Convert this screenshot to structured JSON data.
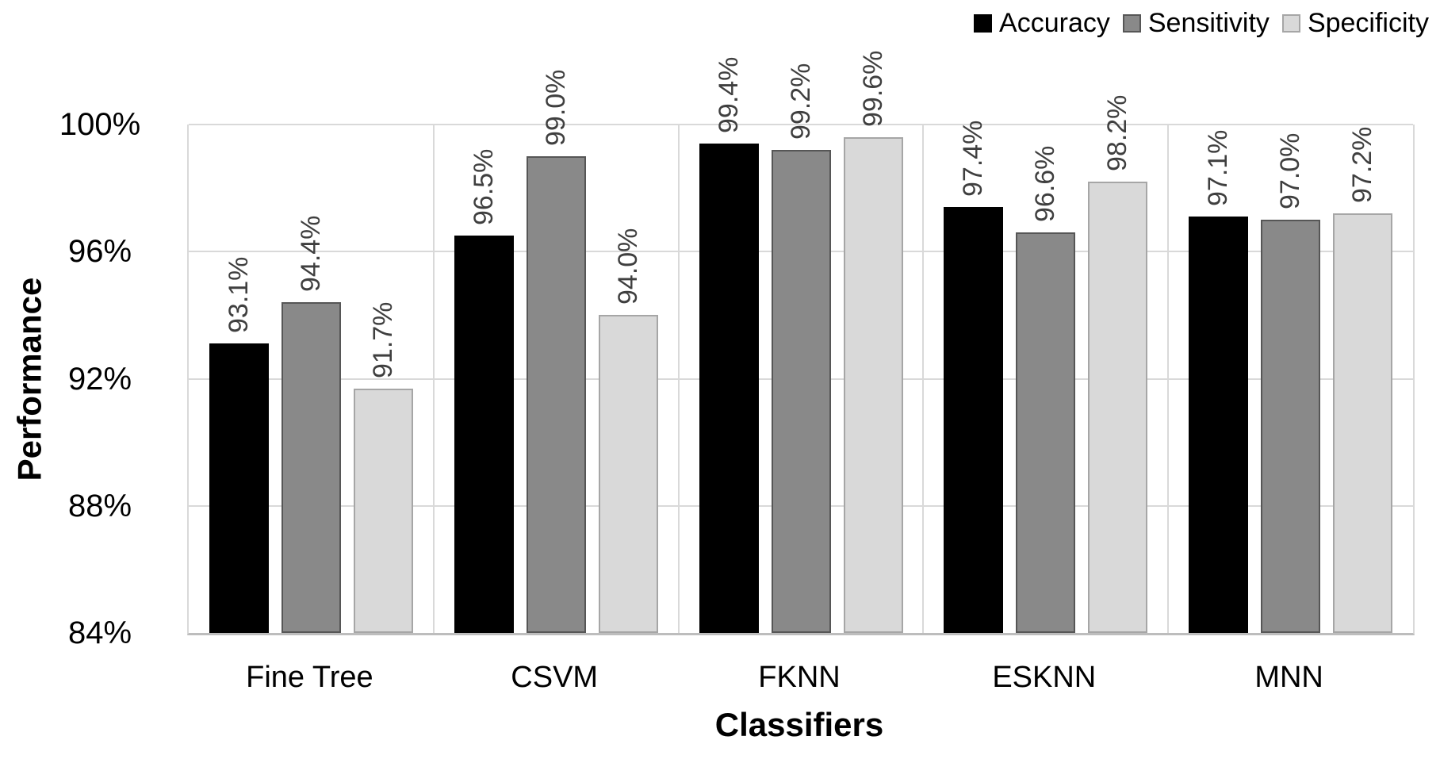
{
  "chart_data": {
    "type": "bar",
    "title": "",
    "xlabel": "Classifiers",
    "ylabel": "Performance",
    "categories": [
      "Fine Tree",
      "CSVM",
      "FKNN",
      "ESKNN",
      "MNN"
    ],
    "series": [
      {
        "name": "Accuracy",
        "color": "#000000",
        "border_color": "#000000",
        "values": [
          93.1,
          96.5,
          99.4,
          97.4,
          97.1
        ],
        "labels": [
          "93.1%",
          "96.5%",
          "99.4%",
          "97.4%",
          "97.1%"
        ]
      },
      {
        "name": "Sensitivity",
        "color": "#898989",
        "border_color": "#565656",
        "values": [
          94.4,
          99.0,
          99.2,
          96.6,
          97.0
        ],
        "labels": [
          "94.4%",
          "99.0%",
          "99.2%",
          "96.6%",
          "97.0%"
        ]
      },
      {
        "name": "Specificity",
        "color": "#d9d9d9",
        "border_color": "#a6a6a6",
        "values": [
          91.7,
          94.0,
          99.6,
          98.2,
          97.2
        ],
        "labels": [
          "91.7%",
          "94.0%",
          "99.6%",
          "98.2%",
          "97.2%"
        ]
      }
    ],
    "ylim": [
      84,
      100
    ],
    "yticks": [
      100,
      96,
      92,
      88,
      84
    ],
    "ytick_labels": [
      "100%",
      "96%",
      "92%",
      "88%",
      "84%"
    ],
    "grid": true,
    "legend_position": "top-right",
    "colors": {
      "gridline": "#d9d9d9",
      "axis_line": "#bdbdbd",
      "data_label_text": "#3f3f3f",
      "tick_text": "#000000",
      "background": "#ffffff"
    }
  }
}
